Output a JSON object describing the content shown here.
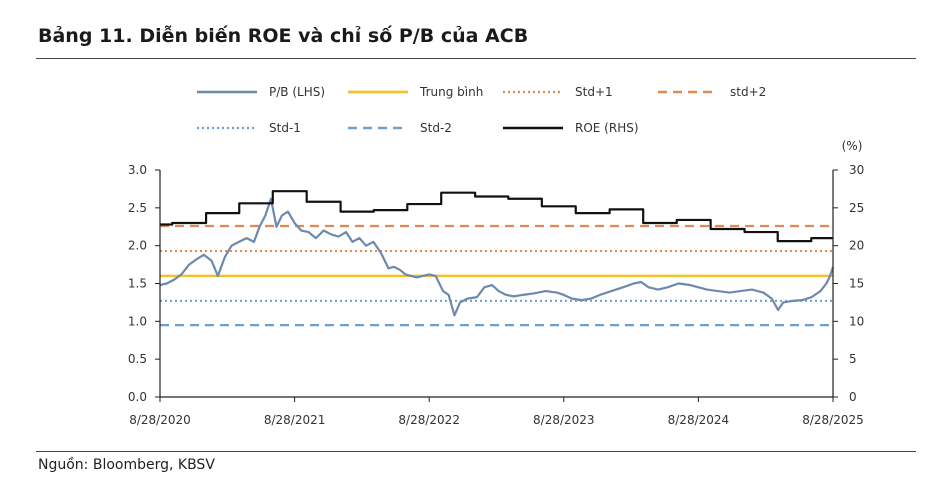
{
  "title": "Bảng 11. Diễn biến ROE và chỉ số P/B của ACB",
  "source": "Nguồn: Bloomberg, KBSV",
  "colors": {
    "pb": "#6d8aad",
    "mean": "#f2c12e",
    "std_plus": "#e08a4e",
    "std_minus": "#6da0cf",
    "roe": "#111111"
  },
  "chart_data": {
    "type": "line",
    "x_tick_labels": [
      "8/28/2020",
      "8/28/2021",
      "8/28/2022",
      "8/28/2023",
      "8/28/2024",
      "8/28/2025"
    ],
    "x_range": [
      "2020-08-28",
      "2025-08-28"
    ],
    "left_axis": {
      "ylim": [
        0,
        3
      ],
      "ticks": [
        "0.0",
        "0.5",
        "1.0",
        "1.5",
        "2.0",
        "2.5",
        "3.0"
      ]
    },
    "right_axis": {
      "unit": "(%)",
      "ylim": [
        0,
        30
      ],
      "ticks": [
        "0",
        "5",
        "10",
        "15",
        "20",
        "25",
        "30"
      ]
    },
    "legend": {
      "placement": "top",
      "items": [
        {
          "key": "pb",
          "label": "P/B (LHS)",
          "style": "solid"
        },
        {
          "key": "mean",
          "label": "Trung bình",
          "style": "solid"
        },
        {
          "key": "std_p1",
          "label": "Std+1",
          "style": "dotted"
        },
        {
          "key": "std_p2",
          "label": "std+2",
          "style": "dashed"
        },
        {
          "key": "std_m1",
          "label": "Std-1",
          "style": "dotted"
        },
        {
          "key": "std_m2",
          "label": "Std-2",
          "style": "dashed"
        },
        {
          "key": "roe",
          "label": "ROE (RHS)",
          "style": "solid"
        }
      ]
    },
    "reference_lines": {
      "mean": 1.6,
      "std_p1": 1.93,
      "std_p2": 2.26,
      "std_m1": 1.27,
      "std_m2": 0.95
    },
    "series": [
      {
        "name": "P/B (LHS)",
        "axis": "left",
        "points": [
          [
            "2020-08-28",
            1.48
          ],
          [
            "2020-09-15",
            1.5
          ],
          [
            "2020-10-05",
            1.55
          ],
          [
            "2020-10-25",
            1.62
          ],
          [
            "2020-11-15",
            1.75
          ],
          [
            "2020-12-05",
            1.82
          ],
          [
            "2020-12-25",
            1.88
          ],
          [
            "2021-01-15",
            1.8
          ],
          [
            "2021-02-01",
            1.6
          ],
          [
            "2021-02-20",
            1.85
          ],
          [
            "2021-03-10",
            2.0
          ],
          [
            "2021-03-30",
            2.05
          ],
          [
            "2021-04-20",
            2.1
          ],
          [
            "2021-05-10",
            2.05
          ],
          [
            "2021-05-25",
            2.25
          ],
          [
            "2021-06-10",
            2.4
          ],
          [
            "2021-06-25",
            2.62
          ],
          [
            "2021-07-10",
            2.25
          ],
          [
            "2021-07-25",
            2.4
          ],
          [
            "2021-08-10",
            2.45
          ],
          [
            "2021-08-28",
            2.3
          ],
          [
            "2021-09-15",
            2.2
          ],
          [
            "2021-10-05",
            2.18
          ],
          [
            "2021-10-25",
            2.1
          ],
          [
            "2021-11-15",
            2.2
          ],
          [
            "2021-12-05",
            2.15
          ],
          [
            "2021-12-25",
            2.12
          ],
          [
            "2022-01-15",
            2.18
          ],
          [
            "2022-02-01",
            2.05
          ],
          [
            "2022-02-20",
            2.1
          ],
          [
            "2022-03-10",
            2.0
          ],
          [
            "2022-03-30",
            2.05
          ],
          [
            "2022-04-20",
            1.9
          ],
          [
            "2022-05-10",
            1.7
          ],
          [
            "2022-05-25",
            1.72
          ],
          [
            "2022-06-10",
            1.68
          ],
          [
            "2022-06-25",
            1.62
          ],
          [
            "2022-07-10",
            1.6
          ],
          [
            "2022-07-25",
            1.58
          ],
          [
            "2022-08-28",
            1.62
          ],
          [
            "2022-09-15",
            1.6
          ],
          [
            "2022-10-05",
            1.4
          ],
          [
            "2022-10-20",
            1.35
          ],
          [
            "2022-11-05",
            1.08
          ],
          [
            "2022-11-20",
            1.25
          ],
          [
            "2022-12-10",
            1.3
          ],
          [
            "2023-01-05",
            1.32
          ],
          [
            "2023-01-25",
            1.45
          ],
          [
            "2023-02-15",
            1.48
          ],
          [
            "2023-03-05",
            1.4
          ],
          [
            "2023-03-25",
            1.35
          ],
          [
            "2023-04-15",
            1.33
          ],
          [
            "2023-05-10",
            1.35
          ],
          [
            "2023-06-10",
            1.37
          ],
          [
            "2023-07-10",
            1.4
          ],
          [
            "2023-08-10",
            1.38
          ],
          [
            "2023-08-28",
            1.35
          ],
          [
            "2023-09-20",
            1.3
          ],
          [
            "2023-10-15",
            1.28
          ],
          [
            "2023-11-10",
            1.3
          ],
          [
            "2023-12-05",
            1.35
          ],
          [
            "2024-01-05",
            1.4
          ],
          [
            "2024-02-05",
            1.45
          ],
          [
            "2024-03-05",
            1.5
          ],
          [
            "2024-03-25",
            1.52
          ],
          [
            "2024-04-15",
            1.45
          ],
          [
            "2024-05-10",
            1.42
          ],
          [
            "2024-06-05",
            1.45
          ],
          [
            "2024-07-05",
            1.5
          ],
          [
            "2024-08-05",
            1.48
          ],
          [
            "2024-08-28",
            1.45
          ],
          [
            "2024-09-20",
            1.42
          ],
          [
            "2024-10-20",
            1.4
          ],
          [
            "2024-11-20",
            1.38
          ],
          [
            "2024-12-20",
            1.4
          ],
          [
            "2025-01-20",
            1.42
          ],
          [
            "2025-02-20",
            1.38
          ],
          [
            "2025-03-15",
            1.3
          ],
          [
            "2025-04-01",
            1.15
          ],
          [
            "2025-04-15",
            1.25
          ],
          [
            "2025-05-10",
            1.27
          ],
          [
            "2025-06-05",
            1.28
          ],
          [
            "2025-07-01",
            1.32
          ],
          [
            "2025-07-25",
            1.4
          ],
          [
            "2025-08-10",
            1.5
          ],
          [
            "2025-08-20",
            1.6
          ],
          [
            "2025-08-28",
            1.72
          ]
        ]
      },
      {
        "name": "ROE (RHS)",
        "axis": "right",
        "step": true,
        "points": [
          [
            "2020-08-28",
            22.8
          ],
          [
            "2020-09-30",
            23.0
          ],
          [
            "2020-12-31",
            24.3
          ],
          [
            "2021-03-31",
            25.6
          ],
          [
            "2021-06-30",
            27.2
          ],
          [
            "2021-09-30",
            25.8
          ],
          [
            "2021-12-31",
            24.5
          ],
          [
            "2022-03-31",
            24.7
          ],
          [
            "2022-06-30",
            25.5
          ],
          [
            "2022-09-30",
            27.0
          ],
          [
            "2022-12-31",
            26.5
          ],
          [
            "2023-03-31",
            26.2
          ],
          [
            "2023-06-30",
            25.2
          ],
          [
            "2023-09-30",
            24.3
          ],
          [
            "2023-12-31",
            24.8
          ],
          [
            "2024-03-31",
            23.0
          ],
          [
            "2024-06-30",
            23.4
          ],
          [
            "2024-09-30",
            22.2
          ],
          [
            "2024-12-31",
            21.8
          ],
          [
            "2025-03-31",
            20.6
          ],
          [
            "2025-06-30",
            21.0
          ],
          [
            "2025-08-28",
            21.0
          ]
        ]
      }
    ]
  }
}
